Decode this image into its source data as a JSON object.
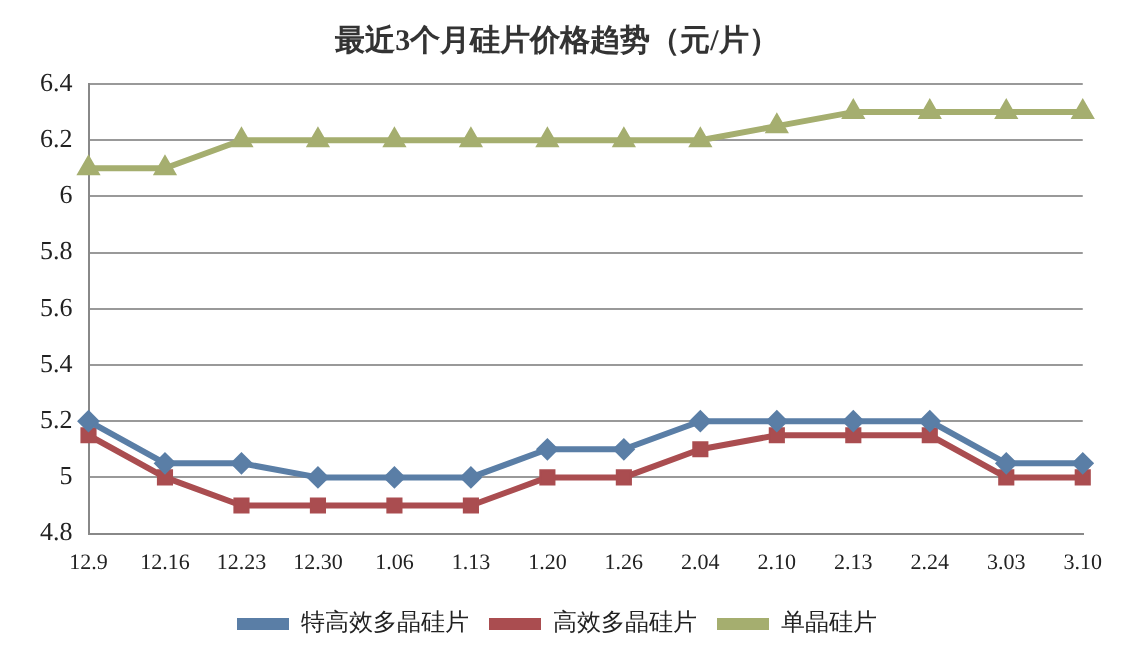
{
  "chart_data": {
    "type": "line",
    "title": "最近3个月硅片价格趋势（元/片）",
    "categories": [
      "12.9",
      "12.16",
      "12.23",
      "12.30",
      "1.06",
      "1.13",
      "1.20",
      "1.26",
      "2.04",
      "2.10",
      "2.13",
      "2.24",
      "3.03",
      "3.10"
    ],
    "series": [
      {
        "name": "特高效多晶硅片",
        "color": "#5a7ea6",
        "marker": "diamond",
        "values": [
          5.2,
          5.05,
          5.05,
          5.0,
          5.0,
          5.0,
          5.1,
          5.1,
          5.2,
          5.2,
          5.2,
          5.2,
          5.05,
          5.05
        ]
      },
      {
        "name": "高效多晶硅片",
        "color": "#aa4d50",
        "marker": "square",
        "values": [
          5.15,
          5.0,
          4.9,
          4.9,
          4.9,
          4.9,
          5.0,
          5.0,
          5.1,
          5.15,
          5.15,
          5.15,
          5.0,
          5.0
        ]
      },
      {
        "name": "单晶硅片",
        "color": "#a5ae6f",
        "marker": "triangle",
        "values": [
          6.1,
          6.1,
          6.2,
          6.2,
          6.2,
          6.2,
          6.2,
          6.2,
          6.2,
          6.25,
          6.3,
          6.3,
          6.3,
          6.3
        ]
      }
    ],
    "ylim": [
      4.8,
      6.4
    ],
    "yticks": [
      4.8,
      5,
      5.2,
      5.4,
      5.6,
      5.8,
      6,
      6.2,
      6.4
    ],
    "grid": "y",
    "legend": "bottom",
    "line_style": "solid"
  }
}
